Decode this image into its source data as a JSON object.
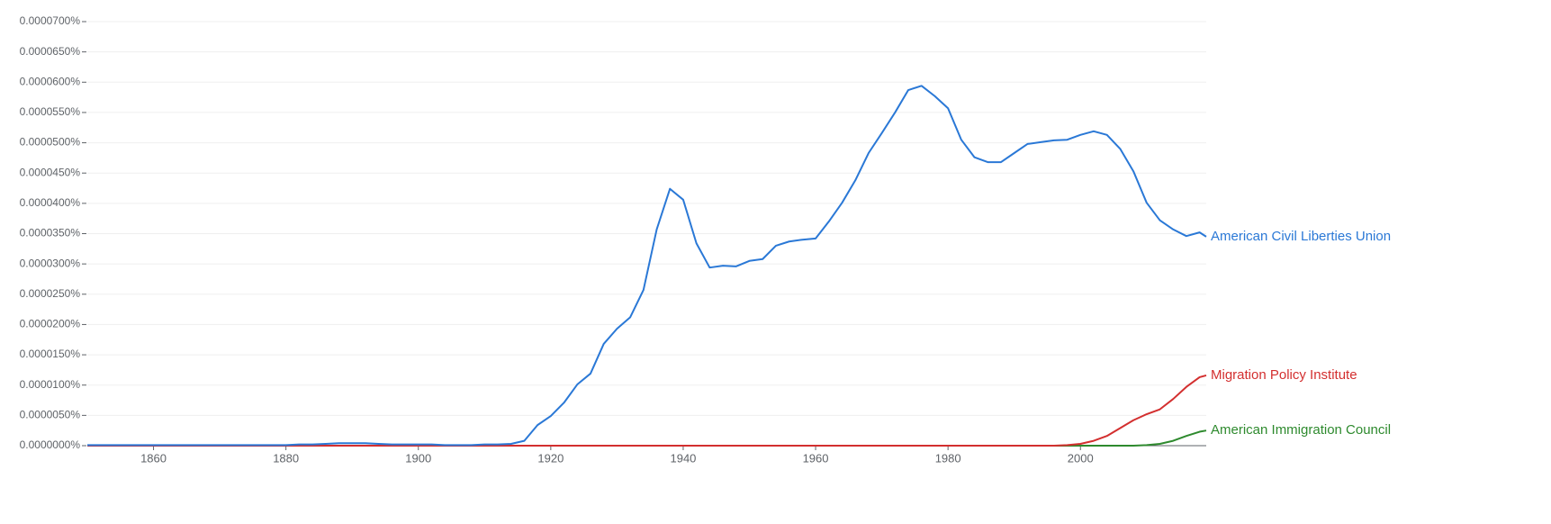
{
  "chart_data": {
    "type": "line",
    "x": [
      1850,
      1852,
      1854,
      1856,
      1858,
      1860,
      1862,
      1864,
      1866,
      1868,
      1870,
      1872,
      1874,
      1876,
      1878,
      1880,
      1882,
      1884,
      1886,
      1888,
      1890,
      1892,
      1894,
      1896,
      1898,
      1900,
      1902,
      1904,
      1906,
      1908,
      1910,
      1912,
      1914,
      1916,
      1918,
      1920,
      1922,
      1924,
      1926,
      1928,
      1930,
      1932,
      1934,
      1936,
      1938,
      1940,
      1942,
      1944,
      1946,
      1948,
      1950,
      1952,
      1954,
      1956,
      1958,
      1960,
      1962,
      1964,
      1966,
      1968,
      1970,
      1972,
      1974,
      1976,
      1978,
      1980,
      1982,
      1984,
      1986,
      1988,
      1990,
      1992,
      1994,
      1996,
      1998,
      2000,
      2002,
      2004,
      2006,
      2008,
      2010,
      2012,
      2014,
      2016,
      2018,
      2019
    ],
    "series": [
      {
        "name": "American Civil Liberties Union",
        "color": "#2a78d6",
        "values": [
          1e-07,
          1e-07,
          1e-07,
          1e-07,
          1e-07,
          1e-07,
          1e-07,
          1e-07,
          1e-07,
          1e-07,
          1e-07,
          1e-07,
          1e-07,
          1e-07,
          1e-07,
          1e-07,
          2e-07,
          2e-07,
          3e-07,
          4e-07,
          4e-07,
          4e-07,
          3e-07,
          2e-07,
          2e-07,
          2e-07,
          2e-07,
          1e-07,
          1e-07,
          1e-07,
          2e-07,
          2e-07,
          3e-07,
          8e-07,
          3.4e-06,
          4.9e-06,
          7.1e-06,
          1.01e-05,
          1.19e-05,
          1.68e-05,
          1.93e-05,
          2.12e-05,
          2.57e-05,
          3.57e-05,
          4.24e-05,
          4.06e-05,
          3.34e-05,
          2.94e-05,
          2.97e-05,
          2.96e-05,
          3.05e-05,
          3.08e-05,
          3.3e-05,
          3.37e-05,
          3.4e-05,
          3.42e-05,
          3.7e-05,
          4.01e-05,
          4.38e-05,
          4.83e-05,
          5.16e-05,
          5.5e-05,
          5.87e-05,
          5.94e-05,
          5.77e-05,
          5.57e-05,
          5.05e-05,
          4.76e-05,
          4.68e-05,
          4.68e-05,
          4.83e-05,
          4.98e-05,
          5.01e-05,
          5.04e-05,
          5.05e-05,
          5.13e-05,
          5.19e-05,
          5.13e-05,
          4.9e-05,
          4.53e-05,
          4.01e-05,
          3.72e-05,
          3.57e-05,
          3.46e-05,
          3.52e-05,
          3.45e-05
        ]
      },
      {
        "name": "Migration Policy Institute",
        "color": "#d32f2f",
        "values": [
          0,
          0,
          0,
          0,
          0,
          0,
          0,
          0,
          0,
          0,
          0,
          0,
          0,
          0,
          0,
          0,
          0,
          0,
          0,
          0,
          0,
          0,
          0,
          0,
          0,
          0,
          0,
          0,
          0,
          0,
          0,
          0,
          0,
          0,
          0,
          0,
          0,
          0,
          0,
          0,
          0,
          0,
          0,
          0,
          0,
          0,
          0,
          0,
          0,
          0,
          0,
          0,
          0,
          0,
          0,
          0,
          0,
          0,
          0,
          0,
          0,
          0,
          0,
          0,
          0,
          0,
          0,
          0,
          0,
          0,
          0,
          0,
          0,
          0,
          1e-07,
          3e-07,
          8e-07,
          1.6e-06,
          2.9e-06,
          4.2e-06,
          5.2e-06,
          6e-06,
          7.7e-06,
          9.7e-06,
          1.13e-05,
          1.16e-05
        ]
      },
      {
        "name": "American Immigration Council",
        "color": "#2e8a2e",
        "values": [
          0,
          0,
          0,
          0,
          0,
          0,
          0,
          0,
          0,
          0,
          0,
          0,
          0,
          0,
          0,
          0,
          0,
          0,
          0,
          0,
          0,
          0,
          0,
          0,
          0,
          0,
          0,
          0,
          0,
          0,
          0,
          0,
          0,
          0,
          0,
          0,
          0,
          0,
          0,
          0,
          0,
          0,
          0,
          0,
          0,
          0,
          0,
          0,
          0,
          0,
          0,
          0,
          0,
          0,
          0,
          0,
          0,
          0,
          0,
          0,
          0,
          0,
          0,
          0,
          0,
          0,
          0,
          0,
          0,
          0,
          0,
          0,
          0,
          0,
          0,
          0,
          0,
          0,
          0,
          0,
          1e-07,
          3e-07,
          8e-07,
          1.6e-06,
          2.3e-06,
          2.5e-06
        ]
      }
    ],
    "xlim": [
      1850,
      2019
    ],
    "xticks": [
      1860,
      1880,
      1900,
      1920,
      1940,
      1960,
      1980,
      2000
    ],
    "ylim": [
      0,
      7e-05
    ],
    "yticks": [
      {
        "value": 0,
        "label": "0.0000000%"
      },
      {
        "value": 5e-06,
        "label": "0.0000050%"
      },
      {
        "value": 1e-05,
        "label": "0.0000100%"
      },
      {
        "value": 1.5e-05,
        "label": "0.0000150%"
      },
      {
        "value": 2e-05,
        "label": "0.0000200%"
      },
      {
        "value": 2.5e-05,
        "label": "0.0000250%"
      },
      {
        "value": 3e-05,
        "label": "0.0000300%"
      },
      {
        "value": 3.5e-05,
        "label": "0.0000350%"
      },
      {
        "value": 4e-05,
        "label": "0.0000400%"
      },
      {
        "value": 4.5e-05,
        "label": "0.0000450%"
      },
      {
        "value": 5e-05,
        "label": "0.0000500%"
      },
      {
        "value": 5.5e-05,
        "label": "0.0000550%"
      },
      {
        "value": 6e-05,
        "label": "0.0000600%"
      },
      {
        "value": 6.5e-05,
        "label": "0.0000650%"
      },
      {
        "value": 7e-05,
        "label": "0.0000700%"
      }
    ],
    "grid": true
  }
}
